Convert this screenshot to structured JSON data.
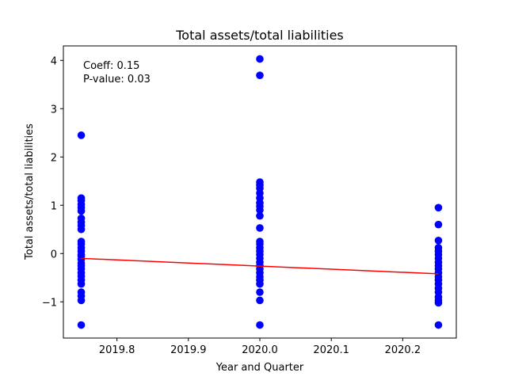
{
  "chart_data": {
    "type": "scatter",
    "title": "Total assets/total liabilities",
    "xlabel": "Year and Quarter",
    "ylabel": "Total assets/total liabilities",
    "xlim": [
      2019.725,
      2020.275
    ],
    "ylim": [
      -1.75,
      4.3
    ],
    "x_ticks": [
      2019.8,
      2019.9,
      2020.0,
      2020.1,
      2020.2
    ],
    "x_tick_labels": [
      "2019.8",
      "2019.9",
      "2020.0",
      "2020.1",
      "2020.2"
    ],
    "y_ticks": [
      -1,
      0,
      1,
      2,
      3,
      4
    ],
    "y_tick_labels": [
      "−1",
      "0",
      "1",
      "2",
      "3",
      "4"
    ],
    "grid": false,
    "point_color": "#0000ff",
    "line_color": "#ff0000",
    "series": [
      {
        "x": 2019.75,
        "values": [
          2.45,
          1.15,
          1.1,
          1.02,
          0.95,
          0.88,
          0.73,
          0.65,
          0.58,
          0.5,
          0.25,
          0.2,
          0.12,
          0.05,
          -0.02,
          -0.05,
          -0.12,
          -0.2,
          -0.25,
          -0.32,
          -0.4,
          -0.47,
          -0.55,
          -0.63,
          -0.8,
          -0.88,
          -0.97,
          -1.48
        ]
      },
      {
        "x": 2020.0,
        "values": [
          4.03,
          3.69,
          1.48,
          1.42,
          1.35,
          1.25,
          1.15,
          1.05,
          0.98,
          0.9,
          0.78,
          0.53,
          0.25,
          0.2,
          0.12,
          0.05,
          -0.02,
          -0.1,
          -0.18,
          -0.25,
          -0.32,
          -0.4,
          -0.48,
          -0.55,
          -0.63,
          -0.8,
          -0.97,
          -1.48
        ]
      },
      {
        "x": 2020.25,
        "values": [
          0.95,
          0.6,
          0.27,
          0.12,
          0.05,
          -0.02,
          -0.1,
          -0.18,
          -0.25,
          -0.32,
          -0.4,
          -0.48,
          -0.55,
          -0.63,
          -0.72,
          -0.8,
          -0.9,
          -0.97,
          -1.02,
          -1.48
        ]
      }
    ],
    "regression_line": {
      "x": [
        2019.75,
        2020.25
      ],
      "y": [
        -0.1,
        -0.42
      ]
    },
    "annotations": [
      "Coeff: 0.15",
      "P-value: 0.03"
    ]
  }
}
